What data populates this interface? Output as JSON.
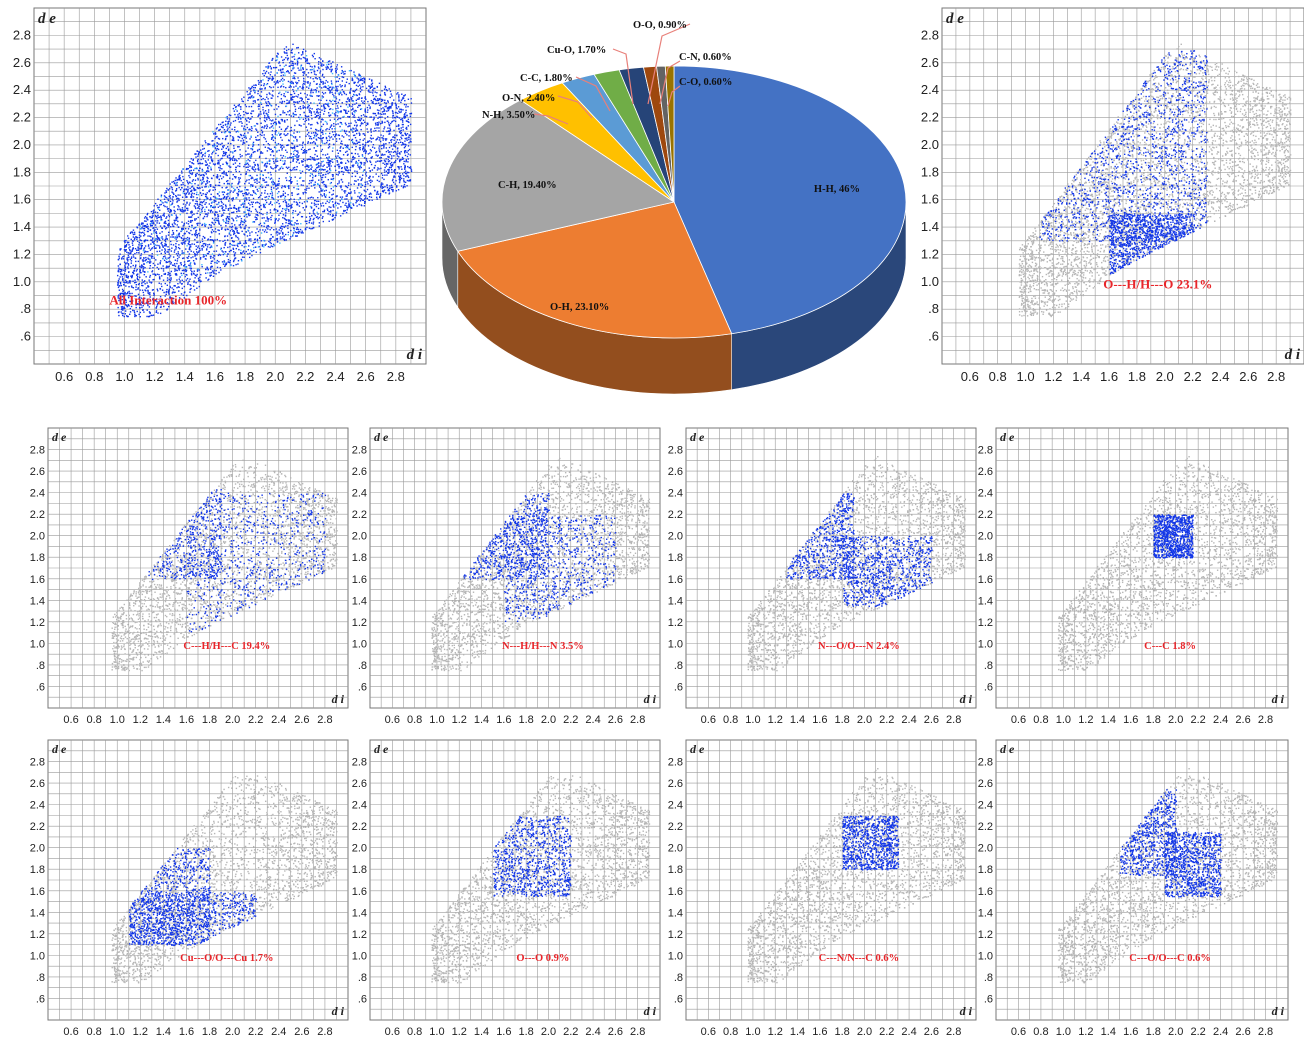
{
  "colors": {
    "grey_points": "#b6b6b6",
    "blue_points": "#1236e8",
    "highlight_points": "#3fb8ff",
    "grid": "#9a9a9a",
    "panel_label": "#e8252a",
    "leader_line": "#e8807a"
  },
  "chart_data": [
    {
      "type": "scatter",
      "id": "all",
      "title": "All Interaction 100%",
      "xlabel": "d i",
      "ylabel": "d e",
      "x_ticks": [
        "0.6",
        "0.8",
        "1.0",
        "1.2",
        "1.4",
        "1.6",
        "1.8",
        "2.0",
        "2.2",
        "2.4",
        "2.6",
        "2.8"
      ],
      "y_ticks": [
        ".6",
        ".8",
        "1.0",
        "1.2",
        "1.4",
        "1.6",
        "1.8",
        "2.0",
        "2.2",
        "2.4",
        "2.6",
        "2.8"
      ],
      "xlim": [
        0.4,
        3.0
      ],
      "ylim": [
        0.4,
        3.0
      ],
      "grid": true,
      "highlight_regions": [
        {
          "x": [
            1.1,
            2.6
          ],
          "y": [
            1.05,
            2.75
          ]
        }
      ]
    },
    {
      "type": "pie",
      "id": "contributions",
      "labels": [
        "H-H, 46%",
        "O-H, 23.10%",
        "C-H, 19.40%",
        "N-H, 3.50%",
        "O-N, 2.40%",
        "C-C, 1.80%",
        "Cu-O, 1.70%",
        "O-O, 0.90%",
        "C-N, 0.60%",
        "C-O, 0.60%"
      ],
      "values": [
        46.0,
        23.1,
        19.4,
        3.5,
        2.4,
        1.8,
        1.7,
        0.9,
        0.6,
        0.6
      ],
      "colors": [
        "#4472c4",
        "#ed7d31",
        "#a5a5a5",
        "#ffc000",
        "#5b9bd5",
        "#70ad47",
        "#264478",
        "#9e480e",
        "#636363",
        "#997300"
      ]
    },
    {
      "type": "scatter",
      "id": "OH",
      "title": "O---H/H---O 23.1%",
      "xlabel": "d i",
      "ylabel": "d e",
      "x_ticks": [
        "0.6",
        "0.8",
        "1.0",
        "1.2",
        "1.4",
        "1.6",
        "1.8",
        "2.0",
        "2.2",
        "2.4",
        "2.6",
        "2.8"
      ],
      "y_ticks": [
        ".6",
        ".8",
        "1.0",
        "1.2",
        "1.4",
        "1.6",
        "1.8",
        "2.0",
        "2.2",
        "2.4",
        "2.6",
        "2.8"
      ],
      "xlim": [
        0.4,
        3.0
      ],
      "ylim": [
        0.4,
        3.0
      ],
      "grid": true,
      "highlight_regions": [
        {
          "x": [
            1.1,
            2.3
          ],
          "y": [
            1.3,
            2.7
          ]
        },
        {
          "x": [
            1.6,
            2.2
          ],
          "y": [
            0.8,
            1.5
          ]
        }
      ]
    },
    {
      "type": "scatter",
      "id": "CH",
      "title": "C---H/H---C 19.4%",
      "xlabel": "d i",
      "ylabel": "d e",
      "x_ticks": [
        "0.6",
        "0.8",
        "1.0",
        "1.2",
        "1.4",
        "1.6",
        "1.8",
        "2.0",
        "2.2",
        "2.4",
        "2.6",
        "2.8"
      ],
      "y_ticks": [
        ".6",
        ".8",
        "1.0",
        "1.2",
        "1.4",
        "1.6",
        "1.8",
        "2.0",
        "2.2",
        "2.4",
        "2.6",
        "2.8"
      ],
      "xlim": [
        0.4,
        3.0
      ],
      "ylim": [
        0.4,
        3.0
      ],
      "grid": true,
      "highlight_regions": [
        {
          "x": [
            1.05,
            1.9
          ],
          "y": [
            1.6,
            2.6
          ]
        },
        {
          "x": [
            1.6,
            2.8
          ],
          "y": [
            1.1,
            2.4
          ]
        }
      ]
    },
    {
      "type": "scatter",
      "id": "NH",
      "title": "N---H/H---N 3.5%",
      "xlabel": "d i",
      "ylabel": "d e",
      "x_ticks": [
        "0.6",
        "0.8",
        "1.0",
        "1.2",
        "1.4",
        "1.6",
        "1.8",
        "2.0",
        "2.2",
        "2.4",
        "2.6",
        "2.8"
      ],
      "y_ticks": [
        ".6",
        ".8",
        "1.0",
        "1.2",
        "1.4",
        "1.6",
        "1.8",
        "2.0",
        "2.2",
        "2.4",
        "2.6",
        "2.8"
      ],
      "xlim": [
        0.4,
        3.0
      ],
      "ylim": [
        0.4,
        3.0
      ],
      "grid": true,
      "highlight_regions": [
        {
          "x": [
            1.2,
            2.0
          ],
          "y": [
            1.6,
            2.4
          ]
        },
        {
          "x": [
            1.6,
            2.6
          ],
          "y": [
            1.2,
            2.2
          ]
        }
      ]
    },
    {
      "type": "scatter",
      "id": "NO",
      "title": "N---O/O---N 2.4%",
      "xlabel": "d i",
      "ylabel": "d e",
      "x_ticks": [
        "0.6",
        "0.8",
        "1.0",
        "1.2",
        "1.4",
        "1.6",
        "1.8",
        "2.0",
        "2.2",
        "2.4",
        "2.6",
        "2.8"
      ],
      "y_ticks": [
        ".6",
        ".8",
        "1.0",
        "1.2",
        "1.4",
        "1.6",
        "1.8",
        "2.0",
        "2.2",
        "2.4",
        "2.6",
        "2.8"
      ],
      "xlim": [
        0.4,
        3.0
      ],
      "ylim": [
        0.4,
        3.0
      ],
      "grid": true,
      "highlight_regions": [
        {
          "x": [
            1.3,
            1.9
          ],
          "y": [
            1.6,
            2.4
          ]
        },
        {
          "x": [
            1.8,
            2.6
          ],
          "y": [
            1.35,
            2.0
          ]
        }
      ]
    },
    {
      "type": "scatter",
      "id": "CC",
      "title": "C---C 1.8%",
      "xlabel": "d i",
      "ylabel": "d e",
      "x_ticks": [
        "0.6",
        "0.8",
        "1.0",
        "1.2",
        "1.4",
        "1.6",
        "1.8",
        "2.0",
        "2.2",
        "2.4",
        "2.6",
        "2.8"
      ],
      "y_ticks": [
        ".6",
        ".8",
        "1.0",
        "1.2",
        "1.4",
        "1.6",
        "1.8",
        "2.0",
        "2.2",
        "2.4",
        "2.6",
        "2.8"
      ],
      "xlim": [
        0.4,
        3.0
      ],
      "ylim": [
        0.4,
        3.0
      ],
      "grid": true,
      "highlight_regions": [
        {
          "x": [
            1.8,
            2.15
          ],
          "y": [
            1.8,
            2.2
          ]
        }
      ]
    },
    {
      "type": "scatter",
      "id": "CuO",
      "title": "Cu---O/O---Cu 1.7%",
      "xlabel": "d i",
      "ylabel": "d e",
      "x_ticks": [
        "0.6",
        "0.8",
        "1.0",
        "1.2",
        "1.4",
        "1.6",
        "1.8",
        "2.0",
        "2.2",
        "2.4",
        "2.6",
        "2.8"
      ],
      "y_ticks": [
        ".6",
        ".8",
        "1.0",
        "1.2",
        "1.4",
        "1.6",
        "1.8",
        "2.0",
        "2.2",
        "2.4",
        "2.6",
        "2.8"
      ],
      "xlim": [
        0.4,
        3.0
      ],
      "ylim": [
        0.4,
        3.0
      ],
      "grid": true,
      "highlight_regions": [
        {
          "x": [
            1.1,
            1.8
          ],
          "y": [
            1.1,
            2.0
          ]
        },
        {
          "x": [
            1.1,
            2.2
          ],
          "y": [
            1.1,
            1.6
          ]
        }
      ]
    },
    {
      "type": "scatter",
      "id": "OO",
      "title": "O---O 0.9%",
      "xlabel": "d i",
      "ylabel": "d e",
      "x_ticks": [
        "0.6",
        "0.8",
        "1.0",
        "1.2",
        "1.4",
        "1.6",
        "1.8",
        "2.0",
        "2.2",
        "2.4",
        "2.6",
        "2.8"
      ],
      "y_ticks": [
        ".6",
        ".8",
        "1.0",
        "1.2",
        "1.4",
        "1.6",
        "1.8",
        "2.0",
        "2.2",
        "2.4",
        "2.6",
        "2.8"
      ],
      "xlim": [
        0.4,
        3.0
      ],
      "ylim": [
        0.4,
        3.0
      ],
      "grid": true,
      "highlight_regions": [
        {
          "x": [
            1.5,
            2.2
          ],
          "y": [
            1.55,
            2.3
          ]
        }
      ]
    },
    {
      "type": "scatter",
      "id": "CN",
      "title": "C---N/N---C 0.6%",
      "xlabel": "d i",
      "ylabel": "d e",
      "x_ticks": [
        "0.6",
        "0.8",
        "1.0",
        "1.2",
        "1.4",
        "1.6",
        "1.8",
        "2.0",
        "2.2",
        "2.4",
        "2.6",
        "2.8"
      ],
      "y_ticks": [
        ".6",
        ".8",
        "1.0",
        "1.2",
        "1.4",
        "1.6",
        "1.8",
        "2.0",
        "2.2",
        "2.4",
        "2.6",
        "2.8"
      ],
      "xlim": [
        0.4,
        3.0
      ],
      "ylim": [
        0.4,
        3.0
      ],
      "grid": true,
      "highlight_regions": [
        {
          "x": [
            1.8,
            2.3
          ],
          "y": [
            1.8,
            2.3
          ]
        }
      ]
    },
    {
      "type": "scatter",
      "id": "CO",
      "title": "C---O/O---C 0.6%",
      "xlabel": "d i",
      "ylabel": "d e",
      "x_ticks": [
        "0.6",
        "0.8",
        "1.0",
        "1.2",
        "1.4",
        "1.6",
        "1.8",
        "2.0",
        "2.2",
        "2.4",
        "2.6",
        "2.8"
      ],
      "y_ticks": [
        ".6",
        ".8",
        "1.0",
        "1.2",
        "1.4",
        "1.6",
        "1.8",
        "2.0",
        "2.2",
        "2.4",
        "2.6",
        "2.8"
      ],
      "xlim": [
        0.4,
        3.0
      ],
      "ylim": [
        0.4,
        3.0
      ],
      "grid": true,
      "highlight_regions": [
        {
          "x": [
            1.5,
            2.0
          ],
          "y": [
            1.75,
            2.55
          ]
        },
        {
          "x": [
            1.9,
            2.4
          ],
          "y": [
            1.55,
            2.15
          ]
        }
      ]
    }
  ]
}
